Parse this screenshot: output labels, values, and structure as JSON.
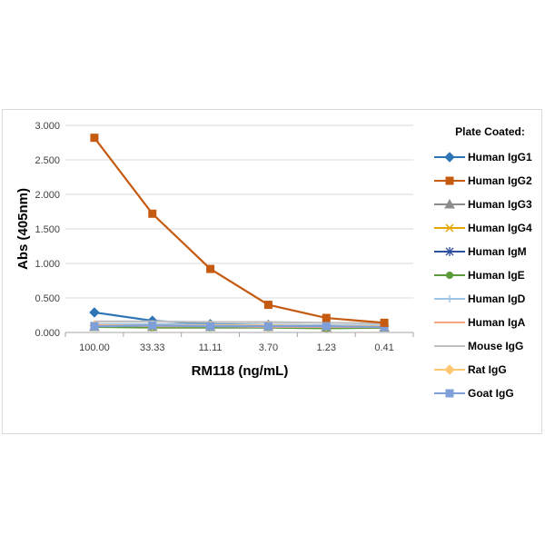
{
  "chart_data": {
    "type": "line",
    "xlabel": "RM118 (ng/mL)",
    "ylabel": "Abs (405nm)",
    "categories": [
      "100.00",
      "33.33",
      "11.11",
      "3.70",
      "1.23",
      "0.41"
    ],
    "yticks": [
      "0.000",
      "0.500",
      "1.000",
      "1.500",
      "2.000",
      "2.500",
      "3.000"
    ],
    "ylim": [
      0,
      3
    ],
    "grid": true,
    "legend_title": "Plate Coated:",
    "legend_position": "right",
    "series": [
      {
        "name": "Human IgG1",
        "color": "#2e75b6",
        "marker": "diamond",
        "values": [
          0.29,
          0.17,
          0.12,
          0.11,
          0.1,
          0.09
        ]
      },
      {
        "name": "Human IgG2",
        "color": "#c55a11",
        "marker": "square",
        "values": [
          2.82,
          1.72,
          0.92,
          0.4,
          0.21,
          0.14
        ]
      },
      {
        "name": "Human IgG3",
        "color": "#8c8c8c",
        "marker": "triangle",
        "values": [
          0.08,
          0.08,
          0.08,
          0.08,
          0.07,
          0.07
        ]
      },
      {
        "name": "Human IgG4",
        "color": "#e6a800",
        "marker": "x",
        "values": [
          0.09,
          0.09,
          0.09,
          0.08,
          0.08,
          0.08
        ]
      },
      {
        "name": "Human IgM",
        "color": "#2f4f9f",
        "marker": "star",
        "values": [
          0.1,
          0.1,
          0.1,
          0.09,
          0.09,
          0.09
        ]
      },
      {
        "name": "Human IgE",
        "color": "#5b9b3a",
        "marker": "circle",
        "values": [
          0.08,
          0.07,
          0.07,
          0.07,
          0.06,
          0.07
        ]
      },
      {
        "name": "Human IgD",
        "color": "#9dc3e6",
        "marker": "plus",
        "values": [
          0.12,
          0.12,
          0.11,
          0.11,
          0.1,
          0.1
        ]
      },
      {
        "name": "Human IgA",
        "color": "#f4a582",
        "marker": "none",
        "values": [
          0.11,
          0.09,
          0.09,
          0.08,
          0.08,
          0.08
        ]
      },
      {
        "name": "Mouse IgG",
        "color": "#bfbfbf",
        "marker": "none",
        "values": [
          0.16,
          0.16,
          0.15,
          0.15,
          0.14,
          0.13
        ]
      },
      {
        "name": "Rat IgG",
        "color": "#ffc870",
        "marker": "diamond",
        "values": [
          0.1,
          0.1,
          0.1,
          0.1,
          0.09,
          0.09
        ]
      },
      {
        "name": "Goat IgG",
        "color": "#7f9fd9",
        "marker": "square",
        "values": [
          0.09,
          0.1,
          0.09,
          0.09,
          0.09,
          0.08
        ]
      }
    ]
  }
}
